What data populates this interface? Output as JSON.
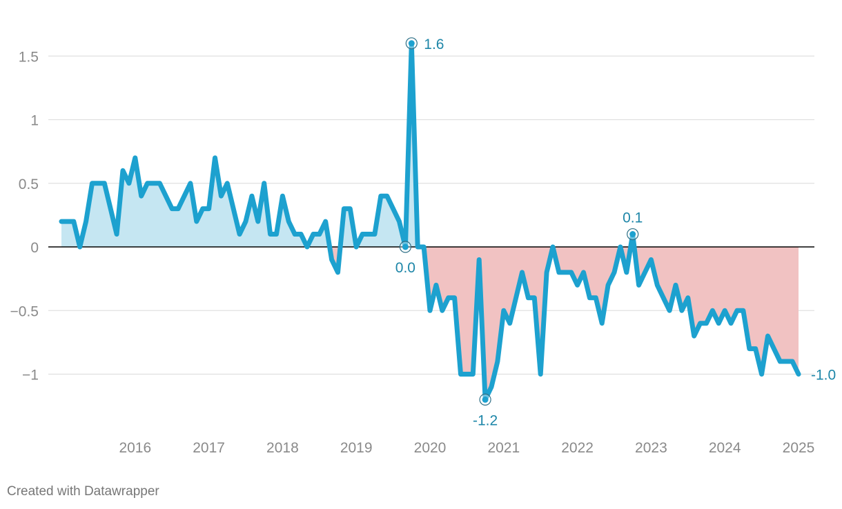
{
  "chart_data": {
    "type": "line",
    "title": "",
    "xlabel": "",
    "ylabel": "",
    "ylim": [
      -1.45,
      1.75
    ],
    "yticks": [
      {
        "v": 1.5,
        "label": "1.5"
      },
      {
        "v": 1,
        "label": "1"
      },
      {
        "v": 0.5,
        "label": "0.5"
      },
      {
        "v": 0,
        "label": "0"
      },
      {
        "v": -0.5,
        "label": "−0.5"
      },
      {
        "v": -1,
        "label": "−1"
      }
    ],
    "xticks": [
      "2016",
      "2017",
      "2018",
      "2019",
      "2020",
      "2021",
      "2022",
      "2023",
      "2024",
      "2025"
    ],
    "grid": true,
    "colors": {
      "line": "#1da1cf",
      "positive_fill": "#c5e6f2",
      "negative_fill": "#f1c2c2",
      "label": "#1d86a8",
      "zero_line": "#000000",
      "grid": "#e0e0e0"
    },
    "series": [
      {
        "start": "2015-07",
        "values": [
          0.2,
          0.2,
          0.2,
          0.0,
          0.2,
          0.5,
          0.5,
          0.5,
          0.3,
          0.1,
          0.6,
          0.5,
          0.7,
          0.4,
          0.5,
          0.5,
          0.5,
          0.4,
          0.3,
          0.3,
          0.4,
          0.5,
          0.2,
          0.3,
          0.3,
          0.7,
          0.4,
          0.5,
          0.3,
          0.1,
          0.2,
          0.4,
          0.2,
          0.5,
          0.1,
          0.1,
          0.4,
          0.2,
          0.1,
          0.1,
          0.0,
          0.1,
          0.1,
          0.2,
          -0.1,
          -0.2,
          0.3,
          0.3,
          0.0,
          0.1,
          0.1,
          0.1,
          0.4,
          0.4,
          0.3,
          0.2,
          0.0,
          1.6,
          0.0,
          0.0,
          -0.5,
          -0.3,
          -0.5,
          -0.4,
          -0.4,
          -1.0,
          -1.0,
          -1.0,
          -0.1,
          -1.2,
          -1.1,
          -0.9,
          -0.5,
          -0.6,
          -0.4,
          -0.2,
          -0.4,
          -0.4,
          -1.0,
          -0.2,
          0.0,
          -0.2,
          -0.2,
          -0.2,
          -0.3,
          -0.2,
          -0.4,
          -0.4,
          -0.6,
          -0.3,
          -0.2,
          0.0,
          -0.2,
          0.1,
          -0.3,
          -0.2,
          -0.1,
          -0.3,
          -0.4,
          -0.5,
          -0.3,
          -0.5,
          -0.4,
          -0.7,
          -0.6,
          -0.6,
          -0.5,
          -0.6,
          -0.5,
          -0.6,
          -0.5,
          -0.5,
          -0.8,
          -0.8,
          -1.0,
          -0.7,
          -0.8,
          -0.9,
          -0.9,
          -0.9,
          -1.0
        ]
      }
    ],
    "annotations": [
      {
        "index": 56,
        "label": "0.0",
        "pos": "below",
        "circle": true
      },
      {
        "index": 57,
        "label": "1.6",
        "pos": "right",
        "circle": true
      },
      {
        "index": 69,
        "label": "-1.2",
        "pos": "below",
        "circle": true
      },
      {
        "index": 93,
        "label": "0.1",
        "pos": "above",
        "circle": true
      },
      {
        "index": 120,
        "label": "-1.0",
        "pos": "right",
        "circle": false
      }
    ]
  },
  "footer": {
    "credit": "Created with Datawrapper"
  }
}
